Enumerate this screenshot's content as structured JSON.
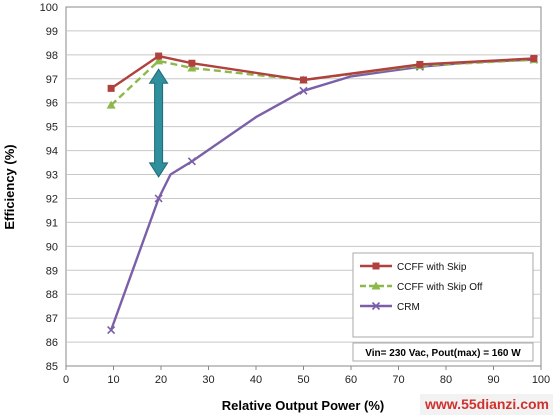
{
  "chart_data": {
    "type": "line",
    "xlabel": "Relative Output Power (%)",
    "ylabel": "Efficiency (%)",
    "xlim": [
      0,
      100
    ],
    "ylim": [
      85,
      100
    ],
    "x_ticks": [
      0,
      10,
      20,
      30,
      40,
      50,
      60,
      70,
      80,
      90,
      100
    ],
    "y_ticks": [
      85,
      86,
      87,
      88,
      89,
      90,
      91,
      92,
      93,
      94,
      95,
      96,
      97,
      98,
      99,
      100
    ],
    "grid": "horizontal",
    "legend_position": "bottom-right",
    "series": [
      {
        "name": "CCFF with Skip",
        "color": "#b0413e",
        "style": "solid",
        "marker": "square",
        "points": [
          [
            9.5,
            96.6
          ],
          [
            19.5,
            97.95
          ],
          [
            26.5,
            97.65
          ],
          [
            50,
            96.95
          ],
          [
            74.5,
            97.6
          ],
          [
            98.5,
            97.85
          ]
        ]
      },
      {
        "name": "CCFF with Skip Off",
        "color": "#8db84c",
        "style": "dashed",
        "marker": "triangle",
        "points": [
          [
            9.5,
            95.9
          ],
          [
            19.5,
            97.75
          ],
          [
            26.5,
            97.45
          ],
          [
            50,
            96.95
          ],
          [
            74.5,
            97.55
          ],
          [
            98.5,
            97.8
          ]
        ]
      },
      {
        "name": "CRM",
        "color": "#7b5fa8",
        "style": "solid",
        "marker": "x",
        "points": [
          [
            9.5,
            86.5
          ],
          [
            19.5,
            92.0
          ],
          [
            22,
            93.0
          ],
          [
            26.5,
            93.55
          ],
          [
            40,
            95.4
          ],
          [
            50,
            96.5
          ],
          [
            60,
            97.1
          ],
          [
            74.5,
            97.5
          ],
          [
            86,
            97.7
          ],
          [
            98.5,
            97.8
          ]
        ]
      }
    ],
    "annotation": "Vin= 230 Vac, Pout(max) = 160 W",
    "arrow": {
      "x": 19.5,
      "y_from": 97.4,
      "y_to": 92.9,
      "color": "#2f8f9d"
    }
  },
  "watermark": "www.55dianzi.com"
}
